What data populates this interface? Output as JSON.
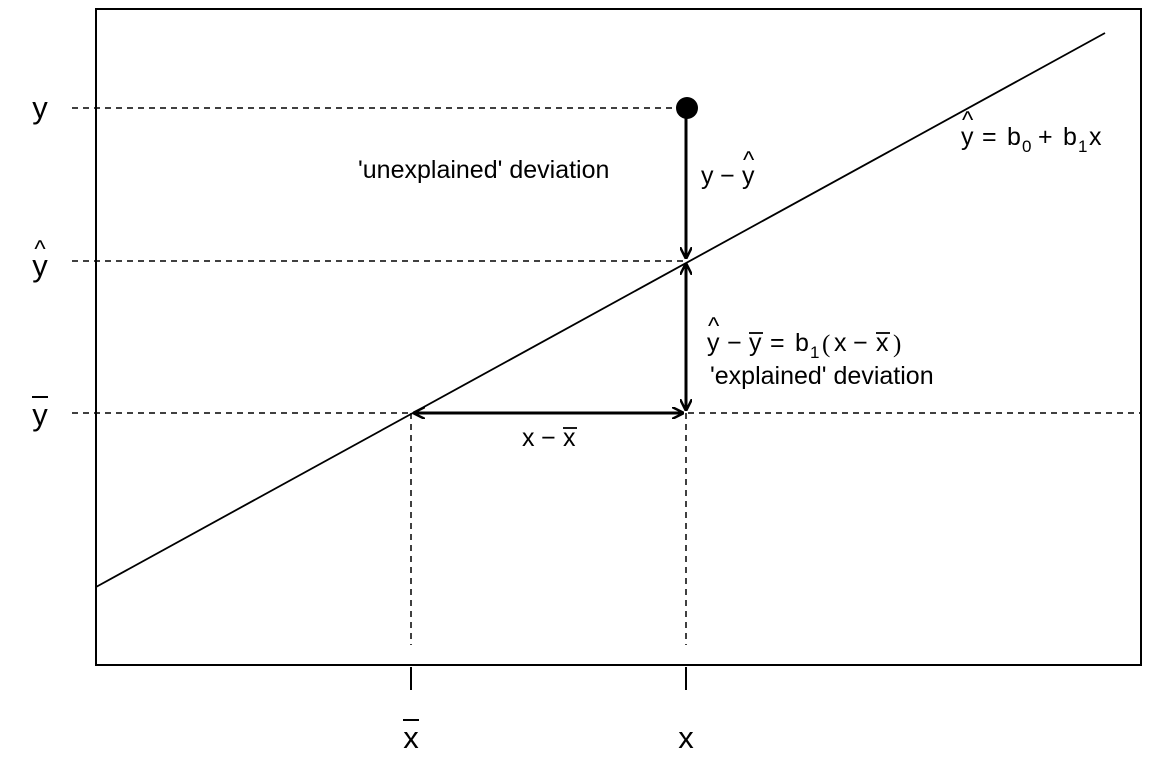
{
  "diagram": {
    "y_labels": {
      "y": "y",
      "yhat": "y",
      "ybar": "y"
    },
    "x_labels": {
      "xbar": "x",
      "x": "x"
    },
    "annotations": {
      "unexplained": "'unexplained' deviation",
      "explained": "'explained' deviation",
      "y_minus_yhat": {
        "y": "y",
        "minus": "−",
        "yhat": "y"
      },
      "x_minus_xbar": {
        "x": "x",
        "minus": "−",
        "xbar": "x"
      },
      "explained_eq": {
        "yhat": "y",
        "minus": "−",
        "ybar": "y",
        "eq": "=",
        "b": "b",
        "sub": "1",
        "open": "(",
        "x": "x",
        "minus2": "−",
        "xbar": "x",
        "close": ")"
      },
      "regression_line": {
        "yhat": "y",
        "eq": "=",
        "b0": "b",
        "sub0": "0",
        "plus": "+",
        "b1": "b",
        "sub1": "1",
        "x": "x"
      }
    },
    "marks": {
      "hat": "^",
      "bar": "‾"
    },
    "colors": {
      "line": "#000000",
      "background": "#ffffff"
    }
  }
}
